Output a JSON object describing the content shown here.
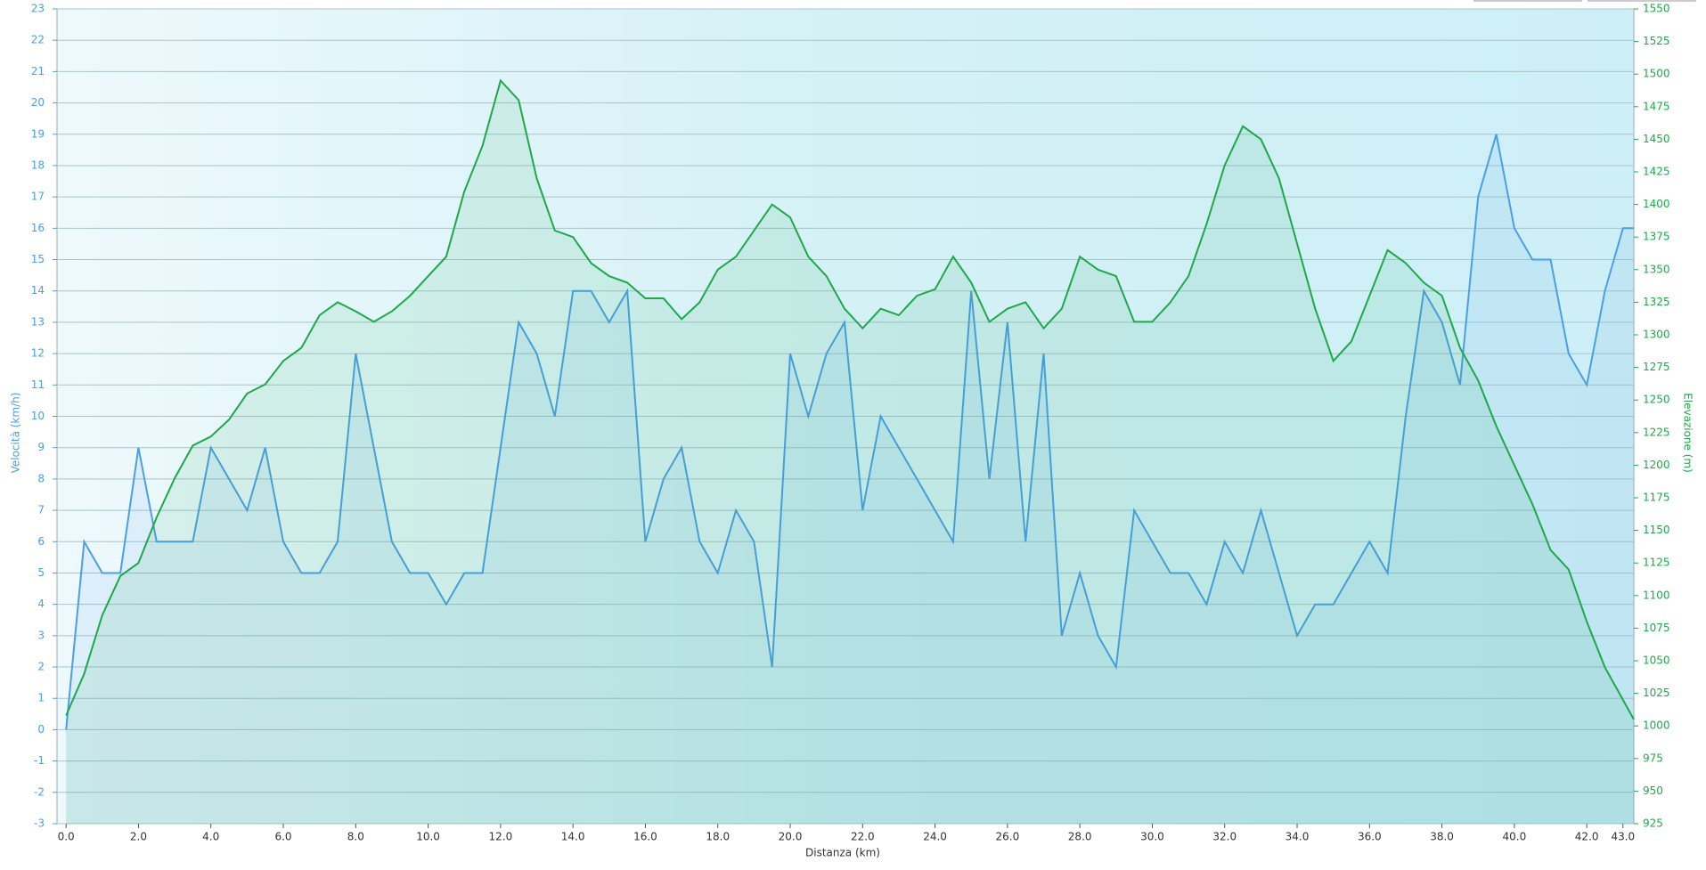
{
  "chart_data": {
    "type": "line",
    "x_label": "Distanza  (km)",
    "y_label": "Velocità (km/h)",
    "y2_label": "Elevazione (m)",
    "x": [
      0,
      0.5,
      1,
      1.5,
      2,
      2.5,
      3,
      3.5,
      4,
      4.5,
      5,
      5.5,
      6,
      6.5,
      7,
      7.5,
      8,
      8.5,
      9,
      9.5,
      10,
      10.5,
      11,
      11.5,
      12,
      12.5,
      13,
      13.5,
      14,
      14.5,
      15,
      15.5,
      16,
      16.5,
      17,
      17.5,
      18,
      18.5,
      19,
      19.5,
      20,
      20.5,
      21,
      21.5,
      22,
      22.5,
      23,
      23.5,
      24,
      24.5,
      25,
      25.5,
      26,
      26.5,
      27,
      27.5,
      28,
      28.5,
      29,
      29.5,
      30,
      30.5,
      31,
      31.5,
      32,
      32.5,
      33,
      33.5,
      34,
      34.5,
      35,
      35.5,
      36,
      36.5,
      37,
      37.5,
      38,
      38.5,
      39,
      39.5,
      40,
      40.5,
      41,
      41.5,
      42,
      42.5,
      43,
      43.3
    ],
    "series": [
      {
        "name": "Velocità",
        "color": "#4a9fe6",
        "axis": "y",
        "values": [
          0,
          6,
          5,
          5,
          9,
          6,
          6,
          6,
          9,
          8,
          7,
          9,
          6,
          5,
          5,
          6,
          12,
          9,
          6,
          5,
          5,
          4,
          5,
          5,
          9,
          13,
          12,
          10,
          14,
          14,
          13,
          14,
          6,
          8,
          9,
          6,
          5,
          7,
          6,
          2,
          12,
          10,
          12,
          13,
          7,
          10,
          9,
          8,
          7,
          6,
          14,
          8,
          13,
          6,
          12,
          3,
          5,
          3,
          2,
          7,
          6,
          5,
          5,
          4,
          6,
          5,
          7,
          5,
          3,
          4,
          4,
          5,
          6,
          5,
          10,
          14,
          13,
          11,
          17,
          19,
          16,
          15,
          15,
          12,
          11,
          14,
          16,
          16
        ]
      },
      {
        "name": "Elevazione",
        "color": "#1fa84a",
        "axis": "y2",
        "values": [
          1008,
          1040,
          1085,
          1115,
          1125,
          1160,
          1190,
          1215,
          1222,
          1235,
          1255,
          1262,
          1280,
          1290,
          1315,
          1325,
          1318,
          1310,
          1318,
          1330,
          1345,
          1360,
          1410,
          1445,
          1495,
          1480,
          1420,
          1380,
          1375,
          1355,
          1345,
          1340,
          1328,
          1328,
          1312,
          1325,
          1350,
          1360,
          1380,
          1400,
          1390,
          1360,
          1345,
          1320,
          1305,
          1320,
          1315,
          1330,
          1335,
          1360,
          1340,
          1310,
          1320,
          1325,
          1305,
          1320,
          1360,
          1350,
          1345,
          1310,
          1310,
          1325,
          1345,
          1385,
          1430,
          1460,
          1450,
          1420,
          1370,
          1320,
          1280,
          1295,
          1330,
          1365,
          1355,
          1340,
          1330,
          1290,
          1265,
          1230,
          1200,
          1170,
          1135,
          1120,
          1080,
          1045,
          1020,
          1005
        ]
      }
    ],
    "xlim": [
      -0.25,
      43.3
    ],
    "xticks": [
      {
        "value": 0,
        "label": "0.0"
      },
      {
        "value": 2,
        "label": "2.0"
      },
      {
        "value": 4,
        "label": "4.0"
      },
      {
        "value": 6,
        "label": "6.0"
      },
      {
        "value": 8,
        "label": "8.0"
      },
      {
        "value": 10,
        "label": "10.0"
      },
      {
        "value": 12,
        "label": "12.0"
      },
      {
        "value": 14,
        "label": "14.0"
      },
      {
        "value": 16,
        "label": "16.0"
      },
      {
        "value": 18,
        "label": "18.0"
      },
      {
        "value": 20,
        "label": "20.0"
      },
      {
        "value": 22,
        "label": "22.0"
      },
      {
        "value": 24,
        "label": "24.0"
      },
      {
        "value": 26,
        "label": "26.0"
      },
      {
        "value": 28,
        "label": "28.0"
      },
      {
        "value": 30,
        "label": "30.0"
      },
      {
        "value": 32,
        "label": "32.0"
      },
      {
        "value": 34,
        "label": "34.0"
      },
      {
        "value": 36,
        "label": "36.0"
      },
      {
        "value": 38,
        "label": "38.0"
      },
      {
        "value": 40,
        "label": "40.0"
      },
      {
        "value": 42,
        "label": "42.0"
      },
      {
        "value": 43,
        "label": "43.0"
      }
    ],
    "ylim": [
      -3,
      23
    ],
    "yticks": [
      -3,
      -2,
      -1,
      0,
      1,
      2,
      3,
      4,
      5,
      6,
      7,
      8,
      9,
      10,
      11,
      12,
      13,
      14,
      15,
      16,
      17,
      18,
      19,
      20,
      21,
      22,
      23
    ],
    "y2lim": [
      925,
      1550
    ],
    "y2ticks": [
      925,
      950,
      975,
      1000,
      1025,
      1050,
      1075,
      1100,
      1125,
      1150,
      1175,
      1200,
      1225,
      1250,
      1275,
      1300,
      1325,
      1350,
      1375,
      1400,
      1425,
      1450,
      1475,
      1500,
      1525,
      1550
    ],
    "grid": true
  }
}
